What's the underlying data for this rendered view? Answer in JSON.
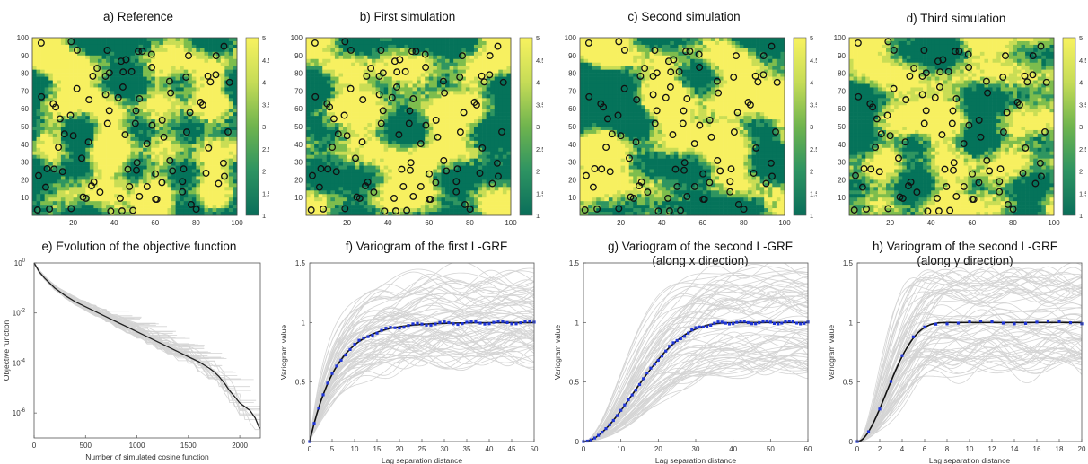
{
  "colors": {
    "dark_green": "#05735a",
    "mid_green": "#2f9560",
    "light_green": "#7dbd4d",
    "yellow": "#f7f060",
    "pale_yellow": "#c9dd55",
    "gray_curve": "#d4d4d4",
    "blue_marker": "#1f35d6"
  },
  "maps": [
    {
      "title": "a) Reference",
      "colorbar_ticks": [
        "1",
        "1.5",
        "2",
        "2.5",
        "3",
        "3.5",
        "4",
        "4.5",
        "5"
      ],
      "y_ticks": [
        "10",
        "20",
        "30",
        "40",
        "50",
        "60",
        "70",
        "80",
        "90",
        "100"
      ],
      "x_ticks": [
        "20",
        "40",
        "60",
        "80",
        "100"
      ]
    },
    {
      "title": "b) First simulation",
      "colorbar_ticks": [
        "1",
        "1.5",
        "2",
        "2.5",
        "3",
        "3.5",
        "4",
        "4.5",
        "5"
      ],
      "y_ticks": [
        "10",
        "20",
        "30",
        "40",
        "50",
        "60",
        "70",
        "80",
        "90",
        "100"
      ],
      "x_ticks": [
        "20",
        "40",
        "60",
        "80",
        "100"
      ]
    },
    {
      "title": "c) Second simulation",
      "colorbar_ticks": [
        "1",
        "1.5",
        "2",
        "2.5",
        "3",
        "3.5",
        "4",
        "4.5",
        "5"
      ],
      "y_ticks": [
        "10",
        "20",
        "30",
        "40",
        "50",
        "60",
        "70",
        "80",
        "90",
        "100"
      ],
      "x_ticks": [
        "20",
        "40",
        "60",
        "80",
        "100"
      ]
    },
    {
      "title": "d) Third simulation",
      "colorbar_ticks": [
        "1",
        "1.5",
        "2",
        "2.5",
        "3",
        "3.5",
        "4",
        "4.5",
        "5"
      ],
      "y_ticks": [
        "10",
        "20",
        "30",
        "40",
        "50",
        "60",
        "70",
        "80",
        "90",
        "100"
      ],
      "x_ticks": [
        "20",
        "40",
        "60",
        "80",
        "100"
      ]
    }
  ],
  "chart_data": [
    {
      "type": "heatmap",
      "title": "a) Reference",
      "xlim": [
        0,
        100
      ],
      "ylim": [
        0,
        100
      ],
      "color_range": [
        1,
        5
      ],
      "categories": [
        1,
        2,
        3,
        4,
        5
      ]
    },
    {
      "type": "heatmap",
      "title": "b) First simulation",
      "xlim": [
        0,
        100
      ],
      "ylim": [
        0,
        100
      ],
      "color_range": [
        1,
        5
      ]
    },
    {
      "type": "heatmap",
      "title": "c) Second simulation",
      "xlim": [
        0,
        100
      ],
      "ylim": [
        0,
        100
      ],
      "color_range": [
        1,
        5
      ]
    },
    {
      "type": "heatmap",
      "title": "d) Third simulation",
      "xlim": [
        0,
        100
      ],
      "ylim": [
        0,
        100
      ],
      "color_range": [
        1,
        5
      ]
    },
    {
      "type": "line",
      "title": "e) Evolution of the objective function",
      "xlabel": "Number of simulated cosine function",
      "ylabel": "Objective function",
      "xlim": [
        0,
        2200
      ],
      "ylim_log": [
        -7,
        0
      ],
      "log_y": true,
      "x_ticks": [
        "0",
        "500",
        "1000",
        "1500",
        "2000"
      ],
      "y_ticks": [
        "10<sup>0</sup>",
        "10<sup>-2</sup>",
        "10<sup>-4</sup>",
        "10<sup>-6</sup>"
      ],
      "main_series": {
        "x": [
          0,
          50,
          100,
          200,
          300,
          400,
          500,
          600,
          700,
          800,
          900,
          1000,
          1100,
          1200,
          1300,
          1400,
          1500,
          1600,
          1700,
          1750,
          1800,
          1850,
          1900,
          1950,
          2000,
          2050,
          2100,
          2150,
          2190,
          2200
        ],
        "log10_y": [
          0,
          -0.35,
          -0.6,
          -1.0,
          -1.3,
          -1.55,
          -1.75,
          -1.95,
          -2.15,
          -2.35,
          -2.55,
          -2.75,
          -2.95,
          -3.15,
          -3.35,
          -3.55,
          -3.75,
          -3.95,
          -4.2,
          -4.35,
          -4.55,
          -4.8,
          -5.1,
          -5.35,
          -5.6,
          -5.75,
          -5.9,
          -6.2,
          -6.6,
          -6.6
        ]
      }
    },
    {
      "type": "line",
      "title": "f) Variogram of the first L-GRF",
      "xlabel": "Lag separation distance",
      "ylabel": "Variogram value",
      "xlim": [
        0,
        50
      ],
      "ylim": [
        0,
        1.5
      ],
      "x_ticks": [
        "0",
        "5",
        "10",
        "15",
        "20",
        "25",
        "30",
        "35",
        "40",
        "45",
        "50"
      ],
      "y_ticks": [
        "0",
        "0.5",
        "1",
        "1.5"
      ],
      "model": "exponential",
      "range": 18,
      "sill": 1,
      "x_max": 50,
      "marker_step": 1
    },
    {
      "type": "line",
      "title": "g) Variogram of the second L-GRF",
      "subtitle": "(along x direction)",
      "xlabel": "Lag separation distance",
      "ylabel": "Variogram value",
      "xlim": [
        0,
        60
      ],
      "ylim": [
        0,
        1.5
      ],
      "x_ticks": [
        "0",
        "10",
        "20",
        "30",
        "40",
        "50",
        "60"
      ],
      "y_ticks": [
        "0",
        "0.5",
        "1",
        "1.5"
      ],
      "model": "cubic",
      "range": 44,
      "sill": 1,
      "x_max": 60,
      "marker_step": 1
    },
    {
      "type": "line",
      "title": "h) Variogram of the second L-GRF",
      "subtitle": "(along y direction)",
      "xlabel": "Lag separation distance",
      "ylabel": "Variogram value",
      "xlim": [
        0,
        20
      ],
      "ylim": [
        0,
        1.5
      ],
      "x_ticks": [
        "0",
        "2",
        "4",
        "6",
        "8",
        "10",
        "12",
        "14",
        "16",
        "18",
        "20"
      ],
      "y_ticks": [
        "0",
        "0.5",
        "1",
        "1.5"
      ],
      "model": "cubic",
      "range": 8.5,
      "sill": 1,
      "x_max": 20,
      "marker_step": 1
    }
  ]
}
